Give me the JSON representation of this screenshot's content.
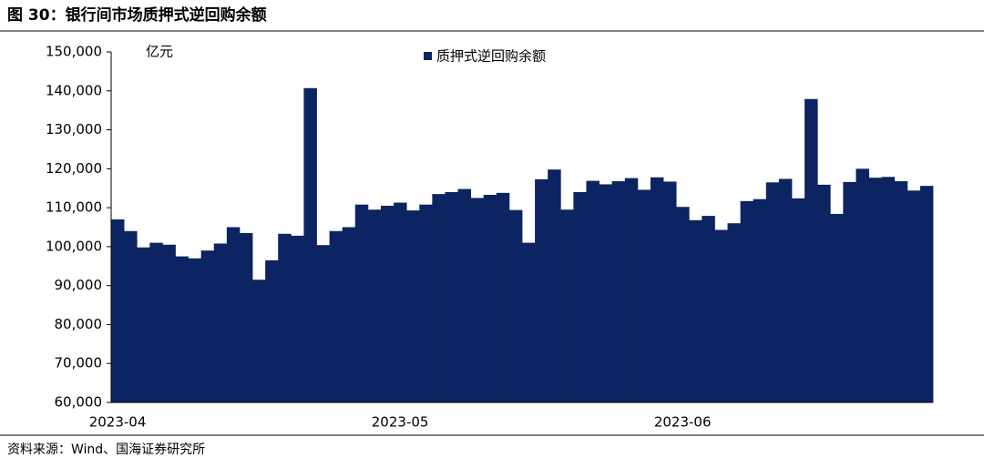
{
  "chart_data": {
    "type": "bar",
    "title": "图 30：银行间市场质押式逆回购余额",
    "unit_label": "亿元",
    "source": "资料来源：Wind、国海证券研究所",
    "categories": [
      "2023-04",
      null,
      null,
      null,
      null,
      null,
      null,
      null,
      null,
      null,
      null,
      null,
      null,
      null,
      null,
      null,
      null,
      null,
      null,
      null,
      null,
      null,
      "2023-05",
      null,
      null,
      null,
      null,
      null,
      null,
      null,
      null,
      null,
      null,
      null,
      null,
      null,
      null,
      null,
      null,
      null,
      null,
      null,
      null,
      null,
      "2023-06",
      null,
      null,
      null,
      null,
      null,
      null,
      null,
      null,
      null,
      null,
      null,
      null,
      null,
      null,
      null,
      null,
      null,
      null,
      null
    ],
    "series": [
      {
        "name": "质押式逆回购余额",
        "color": "#0c2461",
        "values": [
          107000,
          104000,
          99800,
          101000,
          100500,
          97500,
          97000,
          99000,
          100800,
          105000,
          103500,
          91500,
          96500,
          103300,
          102800,
          140700,
          100400,
          104000,
          105000,
          110800,
          109500,
          110500,
          111300,
          109300,
          110800,
          113500,
          114000,
          114800,
          112500,
          113300,
          113800,
          109400,
          101000,
          117300,
          119800,
          109500,
          114000,
          116900,
          116000,
          116800,
          117600,
          114600,
          117800,
          116700,
          110200,
          106800,
          107900,
          104300,
          106000,
          111700,
          112200,
          116500,
          117400,
          112400,
          137900,
          115900,
          108400,
          116600,
          120000,
          117700,
          117900,
          116800,
          114400,
          115600
        ]
      }
    ],
    "ylim": [
      60000,
      150000
    ],
    "yticks": [
      {
        "value": 60000,
        "label": "60,000"
      },
      {
        "value": 70000,
        "label": "70,000"
      },
      {
        "value": 80000,
        "label": "80,000"
      },
      {
        "value": 90000,
        "label": "90,000"
      },
      {
        "value": 100000,
        "label": "100,000"
      },
      {
        "value": 110000,
        "label": "110,000"
      },
      {
        "value": 120000,
        "label": "120,000"
      },
      {
        "value": 130000,
        "label": "130,000"
      },
      {
        "value": 140000,
        "label": "140,000"
      },
      {
        "value": 150000,
        "label": "150,000"
      }
    ],
    "legend": "top-center"
  }
}
